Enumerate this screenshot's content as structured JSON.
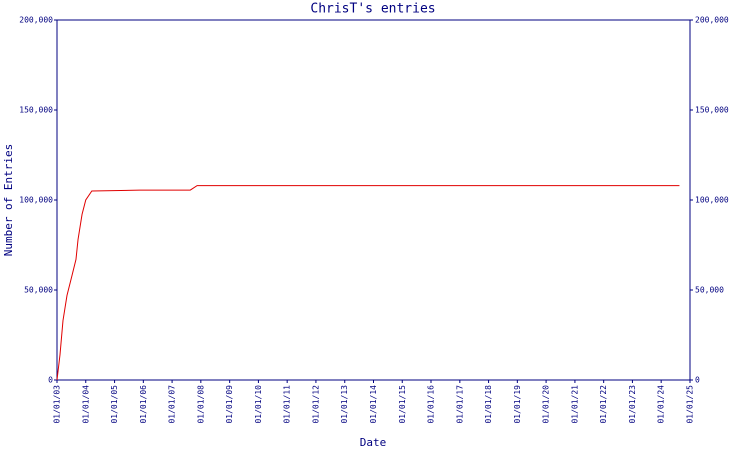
{
  "chart_data": {
    "type": "line",
    "title": "ChrisT's entries",
    "x_label": "Date",
    "y_label": "Number of Entries",
    "color": "#e00000",
    "axis_color": "#000080",
    "x": [
      "2003-01-01",
      "2003-02-08",
      "2003-03-18",
      "2003-05-08",
      "2003-07-10",
      "2003-08-30",
      "2003-09-25",
      "2003-11-15",
      "2004-01-01",
      "2004-03-18",
      "2005-11-15",
      "2007-08-20",
      "2007-11-15",
      "2024-08-20"
    ],
    "values": [
      0,
      14000,
      33000,
      47000,
      58000,
      67000,
      78000,
      92000,
      100000,
      105000,
      105500,
      105500,
      108000,
      108000
    ],
    "xlim": [
      "2003-01-01",
      "2025-01-01"
    ],
    "xticks": [
      {
        "value": "2003-01-01",
        "label": "01/01/03"
      },
      {
        "value": "2004-01-01",
        "label": "01/01/04"
      },
      {
        "value": "2005-01-01",
        "label": "01/01/05"
      },
      {
        "value": "2006-01-01",
        "label": "01/01/06"
      },
      {
        "value": "2007-01-01",
        "label": "01/01/07"
      },
      {
        "value": "2008-01-01",
        "label": "01/01/08"
      },
      {
        "value": "2009-01-01",
        "label": "01/01/09"
      },
      {
        "value": "2010-01-01",
        "label": "01/01/10"
      },
      {
        "value": "2011-01-01",
        "label": "01/01/11"
      },
      {
        "value": "2012-01-01",
        "label": "01/01/12"
      },
      {
        "value": "2013-01-01",
        "label": "01/01/13"
      },
      {
        "value": "2014-01-01",
        "label": "01/01/14"
      },
      {
        "value": "2015-01-01",
        "label": "01/01/15"
      },
      {
        "value": "2016-01-01",
        "label": "01/01/16"
      },
      {
        "value": "2017-01-01",
        "label": "01/01/17"
      },
      {
        "value": "2018-01-01",
        "label": "01/01/18"
      },
      {
        "value": "2019-01-01",
        "label": "01/01/19"
      },
      {
        "value": "2020-01-01",
        "label": "01/01/20"
      },
      {
        "value": "2021-01-01",
        "label": "01/01/21"
      },
      {
        "value": "2022-01-01",
        "label": "01/01/22"
      },
      {
        "value": "2023-01-01",
        "label": "01/01/23"
      },
      {
        "value": "2024-01-01",
        "label": "01/01/24"
      },
      {
        "value": "2025-01-01",
        "label": "01/01/25"
      }
    ],
    "ylim": [
      0,
      200000
    ],
    "yticks": [
      0,
      {
        "value": 50000,
        "label": "50,000"
      },
      {
        "value": 100000,
        "label": "100,000"
      },
      {
        "value": 150000,
        "label": "150,000"
      },
      {
        "value": 200000,
        "label": "200,000"
      }
    ],
    "y_axis_both_sides": true
  }
}
